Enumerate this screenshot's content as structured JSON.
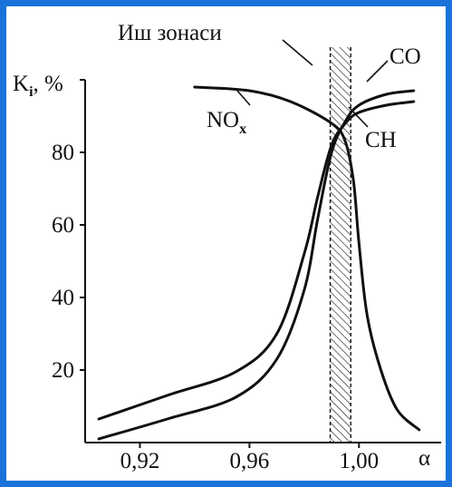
{
  "colors": {
    "border": "#1a73d9",
    "ink": "#111111"
  },
  "chart_data": {
    "type": "line",
    "title": "",
    "xlabel": "α",
    "ylabel_main": "K",
    "ylabel_sub": "i",
    "ylabel_unit": ", %",
    "xlim": [
      0.9,
      1.03
    ],
    "ylim": [
      0,
      100
    ],
    "xticks": [
      {
        "value": 0.92,
        "label": "0,92"
      },
      {
        "value": 0.96,
        "label": "0,96"
      },
      {
        "value": 1.0,
        "label": "1,00"
      }
    ],
    "yticks": [
      {
        "value": 20,
        "label": "20"
      },
      {
        "value": 40,
        "label": "40"
      },
      {
        "value": 60,
        "label": "60"
      },
      {
        "value": 80,
        "label": "80"
      },
      {
        "value": 100,
        "label": ""
      }
    ],
    "zone": {
      "label": "Иш зонаси",
      "x_range": [
        0.9895,
        0.997
      ]
    },
    "series": [
      {
        "name": "CO",
        "points": [
          [
            0.905,
            1
          ],
          [
            0.93,
            6.5
          ],
          [
            0.955,
            12.5
          ],
          [
            0.97,
            23
          ],
          [
            0.98,
            42
          ],
          [
            0.985,
            62
          ],
          [
            0.99,
            80
          ],
          [
            0.995,
            88.5
          ],
          [
            1.0,
            93
          ],
          [
            1.01,
            96
          ],
          [
            1.02,
            97
          ]
        ]
      },
      {
        "name": "CH",
        "points": [
          [
            0.905,
            6.5
          ],
          [
            0.93,
            13
          ],
          [
            0.955,
            19.5
          ],
          [
            0.97,
            30
          ],
          [
            0.98,
            52
          ],
          [
            0.985,
            68
          ],
          [
            0.99,
            82
          ],
          [
            0.995,
            88
          ],
          [
            1.0,
            91
          ],
          [
            1.01,
            93
          ],
          [
            1.02,
            94
          ]
        ]
      },
      {
        "name": "NO",
        "name_sub": "x",
        "points": [
          [
            0.94,
            98
          ],
          [
            0.96,
            97
          ],
          [
            0.975,
            94
          ],
          [
            0.99,
            88
          ],
          [
            0.995,
            83
          ],
          [
            0.998,
            72
          ],
          [
            1.0,
            55
          ],
          [
            1.003,
            35
          ],
          [
            1.008,
            20
          ],
          [
            1.014,
            9
          ],
          [
            1.022,
            3.5
          ]
        ]
      }
    ]
  }
}
